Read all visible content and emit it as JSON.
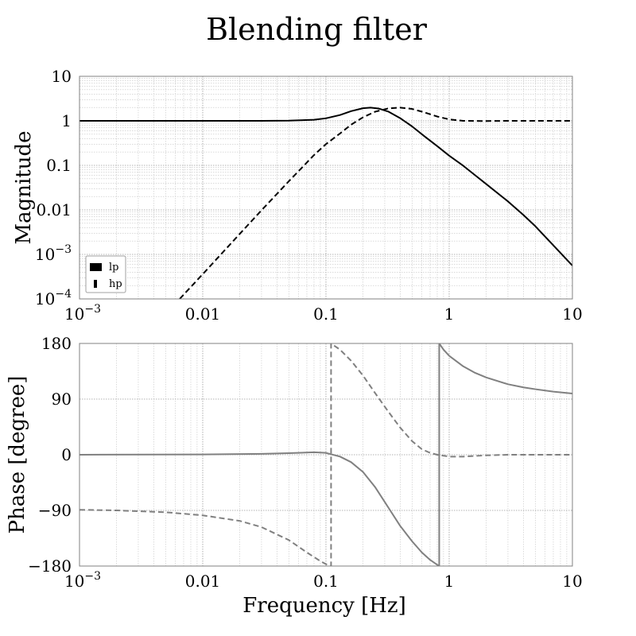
{
  "chart_data": [
    {
      "type": "line",
      "title": "Blending filter",
      "xlabel": "",
      "ylabel": "Magnitude",
      "xscale": "log",
      "yscale": "log",
      "xlim": [
        0.001,
        10
      ],
      "ylim": [
        0.0001,
        10
      ],
      "grid": true,
      "legend_position": "bottom-left",
      "x_ticks": [
        {
          "value": 0.001,
          "base": "10",
          "exp": "−3"
        },
        {
          "value": 0.01,
          "label": "0.01"
        },
        {
          "value": 0.1,
          "label": "0.1"
        },
        {
          "value": 1,
          "label": "1"
        },
        {
          "value": 10,
          "label": "10"
        }
      ],
      "y_ticks": [
        {
          "value": 0.0001,
          "base": "10",
          "exp": "−4"
        },
        {
          "value": 0.001,
          "base": "10",
          "exp": "−3"
        },
        {
          "value": 0.01,
          "label": "0.01"
        },
        {
          "value": 0.1,
          "label": "0.1"
        },
        {
          "value": 1,
          "label": "1"
        },
        {
          "value": 10,
          "label": "10"
        }
      ],
      "series": [
        {
          "name": "lp",
          "style": "solid",
          "color": "#000000",
          "x": [
            0.001,
            0.01,
            0.03,
            0.05,
            0.08,
            0.1,
            0.13,
            0.16,
            0.2,
            0.23,
            0.27,
            0.32,
            0.4,
            0.5,
            0.63,
            0.8,
            1,
            1.3,
            1.6,
            2,
            3,
            4,
            5,
            7,
            10
          ],
          "y": [
            1,
            1,
            1.002,
            1.01,
            1.06,
            1.14,
            1.35,
            1.65,
            1.92,
            1.98,
            1.88,
            1.62,
            1.15,
            0.75,
            0.45,
            0.27,
            0.165,
            0.098,
            0.062,
            0.038,
            0.0155,
            0.0077,
            0.0043,
            0.0016,
            0.00056
          ]
        },
        {
          "name": "hp",
          "style": "dashed",
          "color": "#000000",
          "x": [
            0.0065,
            0.01,
            0.02,
            0.03,
            0.05,
            0.08,
            0.1,
            0.13,
            0.16,
            0.2,
            0.25,
            0.32,
            0.4,
            0.5,
            0.63,
            0.8,
            1,
            1.3,
            2,
            3,
            5,
            10
          ],
          "y": [
            0.0001,
            0.00036,
            0.0029,
            0.0098,
            0.044,
            0.17,
            0.3,
            0.52,
            0.82,
            1.2,
            1.6,
            1.9,
            1.98,
            1.85,
            1.55,
            1.25,
            1.08,
            1.0,
            0.99,
            1.0,
            1.0,
            1.0
          ]
        }
      ]
    },
    {
      "type": "line",
      "xlabel": "Frequency [Hz]",
      "ylabel": "Phase [degree]",
      "xscale": "log",
      "xlim": [
        0.001,
        10
      ],
      "ylim": [
        -180,
        180
      ],
      "grid": true,
      "x_ticks": [
        {
          "value": 0.001,
          "base": "10",
          "exp": "−3"
        },
        {
          "value": 0.01,
          "label": "0.01"
        },
        {
          "value": 0.1,
          "label": "0.1"
        },
        {
          "value": 1,
          "label": "1"
        },
        {
          "value": 10,
          "label": "10"
        }
      ],
      "y_ticks": [
        {
          "value": -180,
          "label": "−180"
        },
        {
          "value": -90,
          "label": "−90"
        },
        {
          "value": 0,
          "label": "0"
        },
        {
          "value": 90,
          "label": "90"
        },
        {
          "value": 180,
          "label": "180"
        }
      ],
      "series": [
        {
          "name": "lp",
          "style": "solid",
          "color": "#808080",
          "x": [
            0.001,
            0.01,
            0.03,
            0.05,
            0.08,
            0.1,
            0.13,
            0.16,
            0.2,
            0.25,
            0.32,
            0.4,
            0.5,
            0.6,
            0.7,
            0.8,
            0.83,
            0.83,
            0.9,
            1,
            1.3,
            1.6,
            2,
            3,
            4,
            5,
            7,
            10
          ],
          "y": [
            0,
            0.5,
            1.5,
            2.5,
            4,
            3,
            -3,
            -12,
            -28,
            -52,
            -85,
            -115,
            -140,
            -158,
            -170,
            -178,
            -180,
            180,
            170,
            160,
            143,
            133,
            125,
            114,
            109,
            106,
            102,
            99
          ]
        },
        {
          "name": "hp",
          "style": "dashed",
          "color": "#808080",
          "x": [
            0.001,
            0.002,
            0.005,
            0.01,
            0.02,
            0.03,
            0.05,
            0.07,
            0.09,
            0.1,
            0.11,
            0.11,
            0.13,
            0.16,
            0.2,
            0.25,
            0.32,
            0.4,
            0.5,
            0.6,
            0.7,
            0.8,
            1,
            1.3,
            2,
            3,
            5,
            10
          ],
          "y": [
            -89,
            -90,
            -93,
            -98,
            -107,
            -117,
            -138,
            -158,
            -172,
            -177,
            -180,
            180,
            170,
            152,
            128,
            100,
            70,
            44,
            22,
            9,
            3,
            0,
            -3,
            -3,
            -1,
            0,
            0,
            0
          ]
        }
      ]
    }
  ]
}
